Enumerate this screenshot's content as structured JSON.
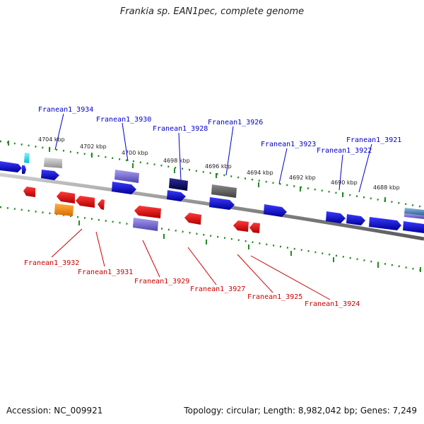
{
  "title": "Frankia sp. EAN1pec, complete genome",
  "footer": {
    "accession": "Accession: NC_009921",
    "summary": "Topology: circular; Length: 8,982,042 bp; Genes: 7,249"
  },
  "colors": {
    "plus_strand_label": "#0000cc",
    "minus_strand_label": "#cc0000",
    "ruler": "#228b22",
    "backbone": "#8c8c8c",
    "gene_blue": "#0a0aff",
    "gene_red": "#ff0a0a",
    "gene_purple": "#7b6fd6",
    "gene_navy": "#000066",
    "gene_gray": "#666666",
    "gene_silver": "#b8b8b8",
    "gene_orange": "#ff8c00",
    "gene_cyan": "#00e5ff",
    "gene_steel": "#5a8fbf"
  },
  "tick_labels": [
    "4704 kbp",
    "4702 kbp",
    "4700 kbp",
    "4698 kbp",
    "4696 kbp",
    "4694 kbp",
    "4692 kbp",
    "4690 kbp",
    "4688 kbp"
  ],
  "plus_strand_labels": [
    "Franean1_3934",
    "Franean1_3930",
    "Franean1_3928",
    "Franean1_3926",
    "Franean1_3923",
    "Franean1_3922",
    "Franean1_3921"
  ],
  "minus_strand_labels": [
    "Franean1_3932",
    "Franean1_3931",
    "Franean1_3929",
    "Franean1_3927",
    "Franean1_3925",
    "Franean1_3924"
  ]
}
